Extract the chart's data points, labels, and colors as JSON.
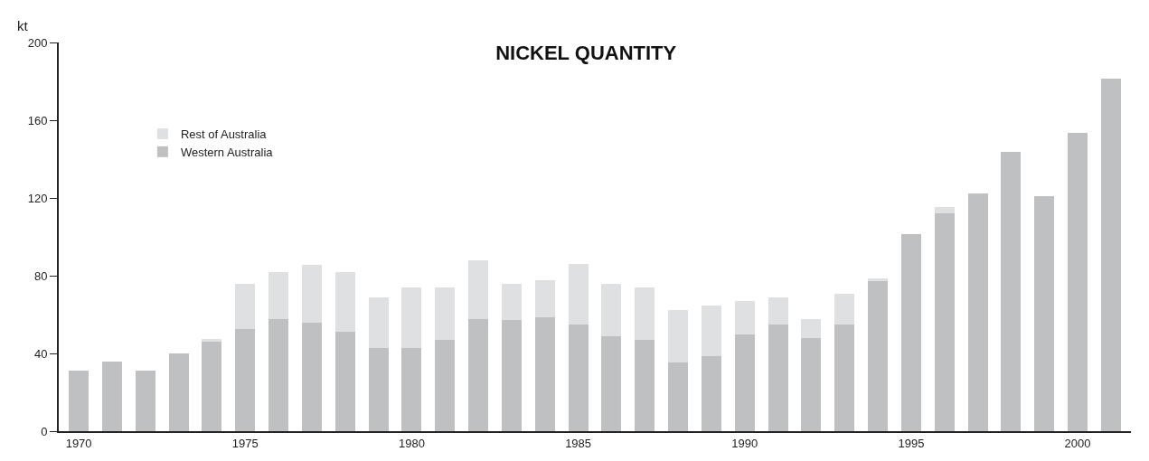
{
  "chart_data": {
    "type": "bar",
    "title": "NICKEL QUANTITY",
    "ylabel": "kt",
    "categories": [
      "1970",
      null,
      null,
      null,
      null,
      "1975",
      null,
      null,
      null,
      null,
      "1980",
      null,
      null,
      null,
      null,
      "1985",
      null,
      null,
      null,
      null,
      "1990",
      null,
      null,
      null,
      null,
      "1995",
      null,
      null,
      null,
      null,
      "2000",
      null
    ],
    "series": [
      {
        "name": "Western Australia",
        "color": "#bfc0c2",
        "values": [
          31,
          36,
          31,
          40,
          46,
          52.5,
          57.5,
          56,
          51,
          43,
          43,
          47,
          57.5,
          57,
          58.5,
          55,
          49,
          47,
          35.5,
          38.5,
          50,
          55,
          48,
          55,
          77,
          101.5,
          112,
          122.5,
          143.5,
          121,
          153.5,
          181.5
        ]
      },
      {
        "name": "Rest of Australia",
        "color": "#dfe0e2",
        "values": [
          null,
          null,
          null,
          null,
          1.5,
          23.5,
          24.5,
          29.5,
          31,
          26,
          31,
          27,
          30.5,
          19,
          19,
          31,
          27,
          27,
          27,
          26,
          17,
          14,
          9.5,
          15.5,
          1.5,
          null,
          3.5,
          null,
          null,
          null,
          null,
          null
        ]
      }
    ],
    "stacked": true,
    "ylim": [
      0,
      200
    ],
    "yticks": [
      0,
      40,
      80,
      120,
      160,
      200
    ],
    "legend": "top left"
  }
}
